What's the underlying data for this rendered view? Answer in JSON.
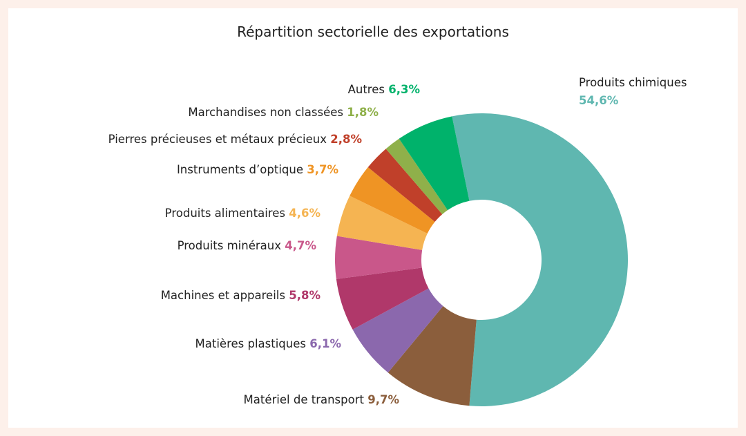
{
  "chart_data": {
    "type": "pie",
    "donut": true,
    "title": "Répartition sectorielle des exportations",
    "categories": [
      "Produits chimiques",
      "Matériel de transport",
      "Matières plastiques",
      "Machines et appareils",
      "Produits minéraux",
      "Produits alimentaires",
      "Instruments d’optique",
      "Pierres précieuses et métaux précieux",
      "Marchandises non classées",
      "Autres"
    ],
    "values": [
      54.6,
      9.7,
      6.1,
      5.8,
      4.7,
      4.6,
      3.7,
      2.8,
      1.8,
      6.3
    ],
    "value_labels": [
      "54,6%",
      "9,7%",
      "6,1%",
      "5,8%",
      "4,7%",
      "4,6%",
      "3,7%",
      "2,8%",
      "1,8%",
      "6,3%"
    ],
    "colors": [
      "#5fb7b0",
      "#8b5e3c",
      "#8b68ad",
      "#b0386a",
      "#c9578a",
      "#f5b452",
      "#ef9424",
      "#c0402a",
      "#8fb04a",
      "#00b26b"
    ]
  }
}
